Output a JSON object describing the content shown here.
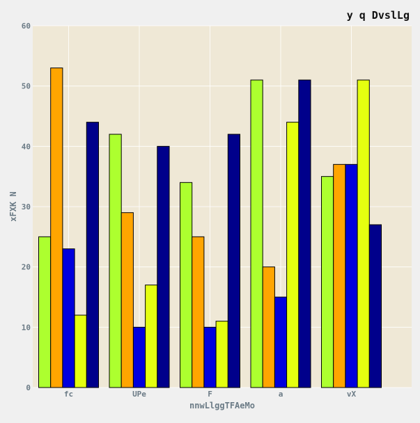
{
  "chart_data": {
    "type": "bar",
    "title": "y  q DvslLg",
    "xlabel": "nnwLlggTFAeMo",
    "ylabel": "xFXK N",
    "categories": [
      "fc",
      "UPe",
      "F",
      "a",
      "vX"
    ],
    "ylim": [
      0,
      60
    ],
    "yticks": [
      0,
      10,
      20,
      30,
      40,
      50,
      60
    ],
    "grid": true,
    "legend": "none",
    "series": [
      {
        "color": "#adff2f",
        "values": [
          25,
          42,
          34,
          51,
          35
        ]
      },
      {
        "color": "#ffa500",
        "values": [
          53,
          29,
          25,
          20,
          37
        ]
      },
      {
        "color": "#0000dd",
        "values": [
          23,
          10,
          10,
          15,
          37
        ]
      },
      {
        "color": "#e5ff10",
        "values": [
          12,
          17,
          11,
          44,
          51
        ]
      },
      {
        "color": "#00008b",
        "values": [
          44,
          40,
          42,
          51,
          27
        ]
      }
    ],
    "colors": {
      "plot_background": "#efe8d6",
      "page_background": "#f0f0f0",
      "grid": "#ffffff"
    }
  }
}
